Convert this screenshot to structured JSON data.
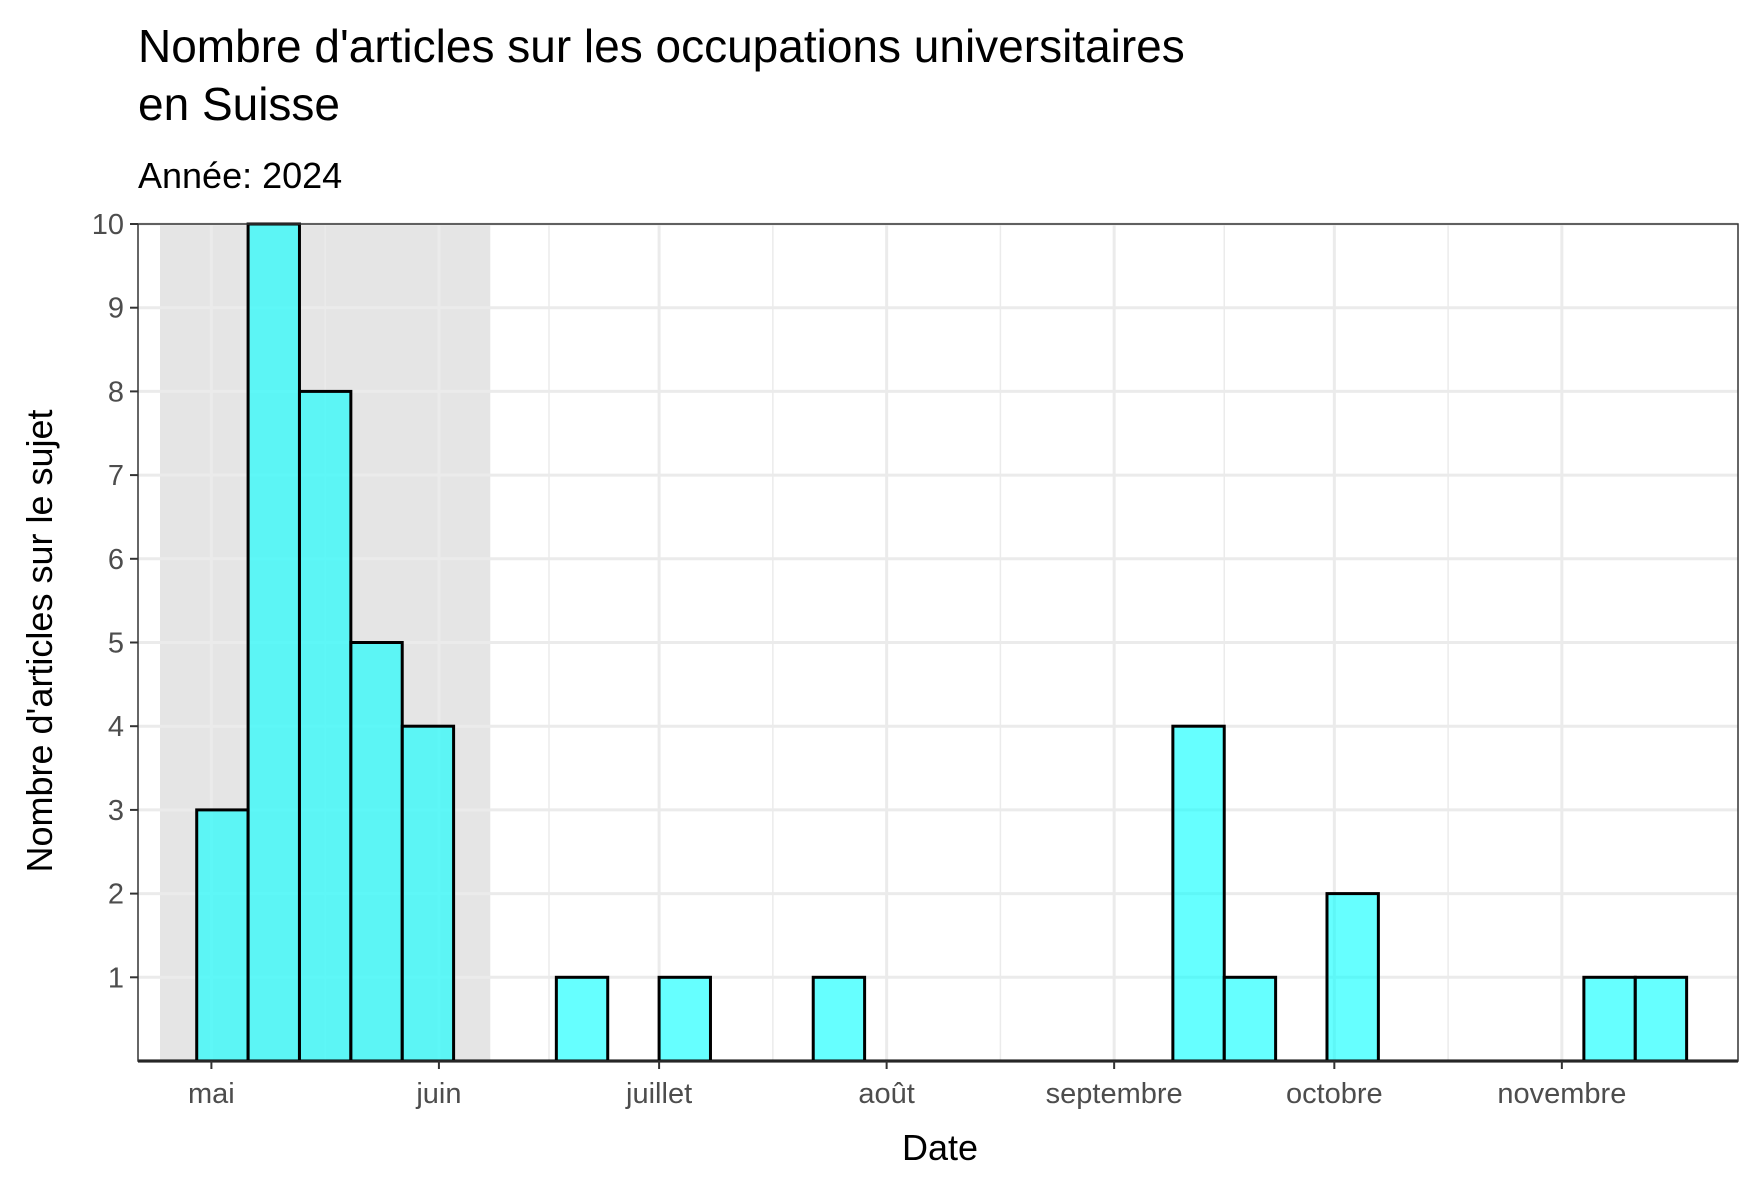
{
  "chart_data": {
    "type": "bar",
    "title_lines": [
      "Nombre d'articles sur les occupations universitaires",
      "en Suisse"
    ],
    "subtitle": "Année: 2024",
    "xlabel": "Date",
    "ylabel": "Nombre d'articles sur le sujet",
    "bin_width_days": 7,
    "x_range": [
      "2024-04-21",
      "2024-11-25"
    ],
    "ylim": [
      0,
      10
    ],
    "y_ticks": [
      1,
      2,
      3,
      4,
      5,
      6,
      7,
      8,
      9,
      10
    ],
    "x_ticks": [
      {
        "date": "2024-05-01",
        "label": "mai"
      },
      {
        "date": "2024-06-01",
        "label": "juin"
      },
      {
        "date": "2024-07-01",
        "label": "juillet"
      },
      {
        "date": "2024-08-01",
        "label": "août"
      },
      {
        "date": "2024-09-01",
        "label": "septembre"
      },
      {
        "date": "2024-10-01",
        "label": "octobre"
      },
      {
        "date": "2024-11-01",
        "label": "novembre"
      }
    ],
    "highlight_period": {
      "start": "2024-04-24",
      "end": "2024-06-08",
      "color": "#e5e5e5"
    },
    "bars": [
      {
        "start": "2024-04-29",
        "value": 3
      },
      {
        "start": "2024-05-06",
        "value": 10
      },
      {
        "start": "2024-05-13",
        "value": 8
      },
      {
        "start": "2024-05-20",
        "value": 5
      },
      {
        "start": "2024-05-27",
        "value": 4
      },
      {
        "start": "2024-06-17",
        "value": 1
      },
      {
        "start": "2024-07-01",
        "value": 1
      },
      {
        "start": "2024-07-22",
        "value": 1
      },
      {
        "start": "2024-09-09",
        "value": 4
      },
      {
        "start": "2024-09-16",
        "value": 1
      },
      {
        "start": "2024-09-30",
        "value": 2
      },
      {
        "start": "2024-11-04",
        "value": 1
      },
      {
        "start": "2024-11-11",
        "value": 1
      }
    ],
    "bar_color": "#00ffff",
    "bar_opacity": 0.6,
    "bar_outline": "#000000",
    "grid": true,
    "legend": "none"
  }
}
